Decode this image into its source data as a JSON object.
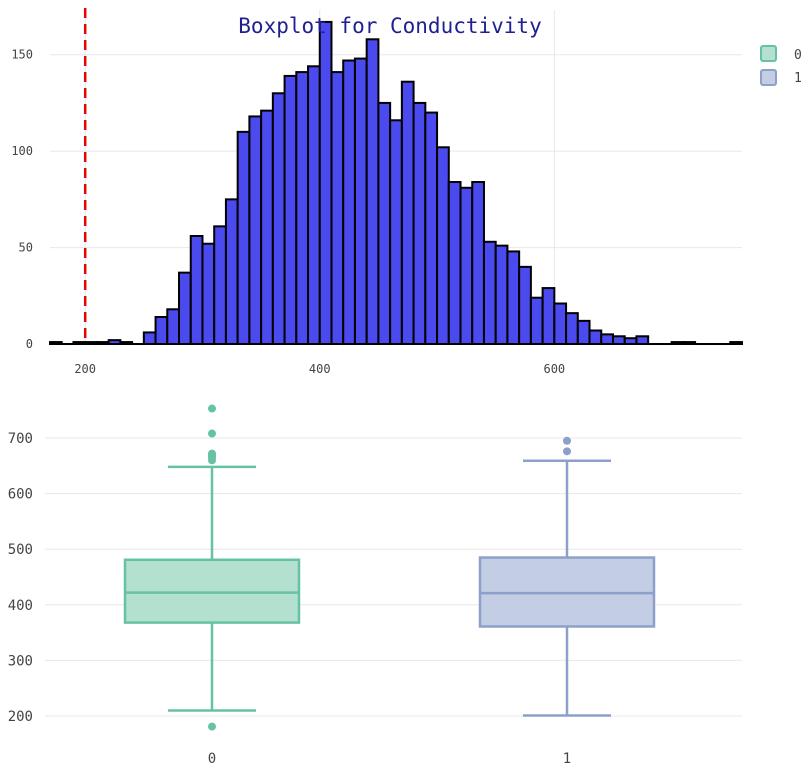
{
  "title": "Boxplot for Conductivity",
  "legend": {
    "items": [
      {
        "label": "0",
        "fill": "#b3e0cf",
        "stroke": "#66c2a5"
      },
      {
        "label": "1",
        "fill": "#c3cde3",
        "stroke": "#8da0cb"
      }
    ]
  },
  "colors": {
    "bar_fill": "#4a4aee",
    "bar_stroke": "#000000",
    "reference_line": "#ee0000",
    "grid": "#e8e8e8",
    "title": "#1f1f8f"
  },
  "chart_data": [
    {
      "type": "bar",
      "subtype": "histogram",
      "x_ticks": [
        "200",
        "400",
        "600"
      ],
      "y_ticks": [
        "0",
        "50",
        "100",
        "150"
      ],
      "xlim": [
        170,
        760
      ],
      "ylim": [
        0,
        168
      ],
      "bin_width": 10,
      "bin_starts": [
        170,
        180,
        190,
        200,
        210,
        220,
        230,
        240,
        250,
        260,
        270,
        280,
        290,
        300,
        310,
        320,
        330,
        340,
        350,
        360,
        370,
        380,
        390,
        400,
        410,
        420,
        430,
        440,
        450,
        460,
        470,
        480,
        490,
        500,
        510,
        520,
        530,
        540,
        550,
        560,
        570,
        580,
        590,
        600,
        610,
        620,
        630,
        640,
        650,
        660,
        670,
        680,
        690,
        700,
        710,
        720,
        730,
        740,
        750
      ],
      "values": [
        1,
        0,
        1,
        1,
        1,
        2,
        1,
        0,
        6,
        14,
        18,
        37,
        56,
        52,
        61,
        75,
        110,
        118,
        121,
        130,
        139,
        141,
        144,
        167,
        141,
        147,
        148,
        158,
        125,
        116,
        136,
        125,
        120,
        102,
        84,
        81,
        84,
        53,
        51,
        48,
        40,
        24,
        29,
        21,
        16,
        12,
        7,
        5,
        4,
        3,
        4,
        0,
        0,
        1,
        1,
        0,
        0,
        0,
        1
      ],
      "reference_line_x": 200,
      "grid": true
    },
    {
      "type": "box",
      "categories": [
        "0",
        "1"
      ],
      "y_ticks": [
        "200",
        "300",
        "400",
        "500",
        "600",
        "700"
      ],
      "ylim": [
        170,
        760
      ],
      "series": [
        {
          "name": "0",
          "min": 210,
          "q1": 368,
          "median": 422,
          "q3": 481,
          "max": 648,
          "outliers": [
            181,
            660,
            665,
            668,
            672,
            708,
            753
          ]
        },
        {
          "name": "1",
          "min": 201,
          "q1": 361,
          "median": 421,
          "q3": 485,
          "max": 659,
          "outliers": [
            676,
            695
          ]
        }
      ],
      "grid": true
    }
  ]
}
